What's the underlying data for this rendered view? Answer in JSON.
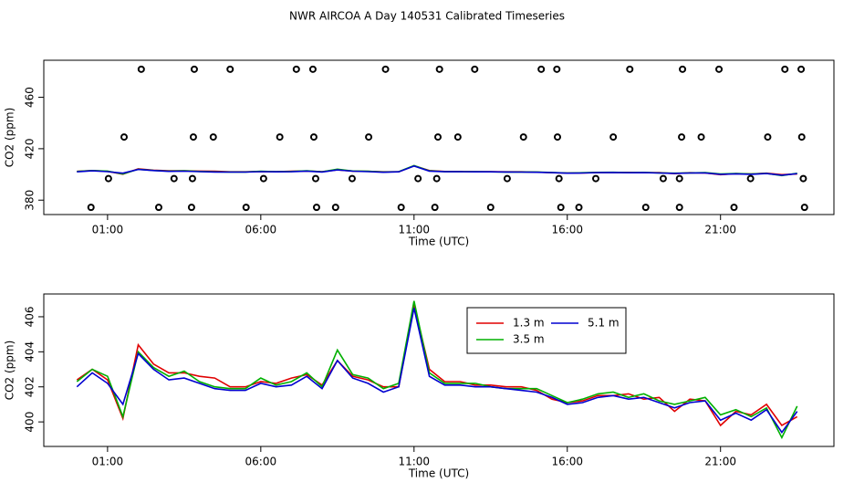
{
  "chart_data": [
    {
      "type": "line",
      "title": "NWR AIRCOA A  Day 140531  Calibrated Timeseries",
      "x_label": "Time (UTC)",
      "y_label": "CO2 (ppm)",
      "xlim": [
        -1.08,
        24.7
      ],
      "ylim": [
        368.8,
        488.8
      ],
      "xticks": [
        {
          "value": 1,
          "label": "01:00"
        },
        {
          "value": 6,
          "label": "06:00"
        },
        {
          "value": 11,
          "label": "11:00"
        },
        {
          "value": 16,
          "label": "16:00"
        },
        {
          "value": 21,
          "label": "21:00"
        }
      ],
      "yticks": [
        380,
        420,
        460
      ],
      "x": [
        0,
        0.5,
        1,
        1.5,
        2,
        2.5,
        3,
        3.5,
        4,
        4.5,
        5,
        5.5,
        6,
        6.5,
        7,
        7.5,
        8,
        8.5,
        9,
        9.5,
        10,
        10.5,
        11,
        11.5,
        12,
        12.5,
        13,
        13.5,
        14,
        14.5,
        15,
        15.5,
        16,
        16.5,
        17,
        17.5,
        18,
        18.5,
        19,
        19.5,
        20,
        20.5,
        21,
        21.5,
        22,
        22.5,
        23,
        23.5
      ],
      "series": [
        {
          "color": "#e00000",
          "values": [
            402.4,
            403.0,
            402.4,
            400.2,
            404.4,
            403.3,
            402.8,
            402.8,
            402.6,
            402.5,
            402.0,
            402.0,
            402.3,
            402.2,
            402.5,
            402.7,
            402.1,
            403.5,
            402.6,
            402.4,
            402.0,
            402.0,
            406.7,
            403.0,
            402.3,
            402.3,
            402.1,
            402.1,
            402.0,
            402.0,
            401.8,
            401.3,
            401.1,
            401.2,
            401.5,
            401.5,
            401.6,
            401.3,
            401.4,
            400.6,
            401.3,
            401.2,
            399.8,
            400.6,
            400.4,
            401.0,
            399.8,
            400.3
          ]
        },
        {
          "color": "#00b000",
          "values": [
            402.3,
            403.0,
            402.6,
            400.3,
            404.0,
            403.1,
            402.6,
            402.9,
            402.3,
            402.0,
            401.9,
            401.9,
            402.5,
            402.1,
            402.3,
            402.8,
            402.0,
            404.1,
            402.7,
            402.5,
            401.9,
            402.2,
            406.9,
            402.8,
            402.2,
            402.2,
            402.2,
            402.0,
            401.9,
            401.9,
            401.9,
            401.5,
            401.1,
            401.3,
            401.6,
            401.7,
            401.4,
            401.6,
            401.2,
            401.0,
            401.2,
            401.4,
            400.4,
            400.7,
            400.3,
            400.8,
            399.1,
            400.9
          ]
        },
        {
          "color": "#0000d0",
          "values": [
            402.0,
            402.8,
            402.2,
            401.0,
            403.9,
            403.0,
            402.4,
            402.5,
            402.2,
            401.9,
            401.8,
            401.8,
            402.2,
            402.0,
            402.1,
            402.6,
            401.9,
            403.5,
            402.5,
            402.2,
            401.7,
            402.0,
            406.5,
            402.6,
            402.1,
            402.1,
            402.0,
            402.0,
            401.9,
            401.8,
            401.7,
            401.4,
            401.0,
            401.1,
            401.4,
            401.5,
            401.3,
            401.4,
            401.1,
            400.8,
            401.1,
            401.2,
            400.1,
            400.5,
            400.1,
            400.7,
            399.4,
            400.6
          ]
        },
        {
          "style": "points",
          "color": "#000000",
          "x": [
            2.1,
            3.83,
            5.0,
            7.16,
            7.7,
            10.07,
            11.83,
            12.98,
            15.15,
            15.66,
            18.04,
            19.76,
            20.95,
            23.1,
            23.63,
            1.54,
            3.8,
            4.45,
            6.62,
            7.73,
            9.52,
            11.78,
            12.43,
            14.57,
            15.68,
            17.5,
            19.73,
            20.37,
            22.54,
            23.65,
            1.03,
            3.17,
            3.77,
            6.09,
            7.79,
            8.98,
            11.13,
            11.74,
            14.04,
            15.73,
            16.93,
            19.13,
            19.66,
            21.98,
            23.7,
            0.46,
            2.67,
            3.74,
            5.52,
            7.82,
            8.44,
            10.58,
            11.68,
            13.5,
            15.79,
            16.38,
            18.56,
            19.66,
            21.44,
            23.74
          ],
          "values": [
            481.8,
            481.8,
            481.8,
            481.8,
            481.8,
            481.8,
            481.8,
            481.8,
            481.8,
            481.8,
            481.8,
            481.8,
            481.8,
            481.8,
            481.8,
            429.1,
            429.1,
            429.1,
            429.1,
            429.1,
            429.1,
            429.1,
            429.1,
            429.1,
            429.1,
            429.1,
            429.1,
            429.1,
            429.1,
            429.1,
            396.8,
            396.8,
            396.8,
            396.8,
            396.8,
            396.8,
            396.8,
            396.8,
            396.8,
            396.8,
            396.8,
            396.8,
            396.8,
            396.8,
            396.8,
            374.4,
            374.4,
            374.4,
            374.4,
            374.4,
            374.4,
            374.4,
            374.4,
            374.4,
            374.4,
            374.4,
            374.4,
            374.4,
            374.4,
            374.4
          ]
        }
      ]
    },
    {
      "type": "line",
      "x_label": "Time (UTC)",
      "y_label": "CO2 (ppm)",
      "xlim": [
        -1.08,
        24.7
      ],
      "ylim": [
        398.6,
        407.3
      ],
      "xticks": [
        {
          "value": 1,
          "label": "01:00"
        },
        {
          "value": 6,
          "label": "06:00"
        },
        {
          "value": 11,
          "label": "11:00"
        },
        {
          "value": 16,
          "label": "16:00"
        },
        {
          "value": 21,
          "label": "21:00"
        }
      ],
      "yticks": [
        400,
        402,
        404,
        406
      ],
      "x": [
        0,
        0.5,
        1,
        1.5,
        2,
        2.5,
        3,
        3.5,
        4,
        4.5,
        5,
        5.5,
        6,
        6.5,
        7,
        7.5,
        8,
        8.5,
        9,
        9.5,
        10,
        10.5,
        11,
        11.5,
        12,
        12.5,
        13,
        13.5,
        14,
        14.5,
        15,
        15.5,
        16,
        16.5,
        17,
        17.5,
        18,
        18.5,
        19,
        19.5,
        20,
        20.5,
        21,
        21.5,
        22,
        22.5,
        23,
        23.5
      ],
      "series": [
        {
          "name": "1.3 m",
          "color": "#e00000",
          "values": [
            402.4,
            403.0,
            402.4,
            400.2,
            404.4,
            403.3,
            402.8,
            402.8,
            402.6,
            402.5,
            402.0,
            402.0,
            402.3,
            402.2,
            402.5,
            402.7,
            402.1,
            403.5,
            402.6,
            402.4,
            402.0,
            402.0,
            406.7,
            403.0,
            402.3,
            402.3,
            402.1,
            402.1,
            402.0,
            402.0,
            401.8,
            401.3,
            401.1,
            401.2,
            401.5,
            401.5,
            401.6,
            401.3,
            401.4,
            400.6,
            401.3,
            401.2,
            399.8,
            400.6,
            400.4,
            401.0,
            399.8,
            400.3
          ]
        },
        {
          "name": "3.5 m",
          "color": "#00b000",
          "values": [
            402.3,
            403.0,
            402.6,
            400.3,
            404.0,
            403.1,
            402.6,
            402.9,
            402.3,
            402.0,
            401.9,
            401.9,
            402.5,
            402.1,
            402.3,
            402.8,
            402.0,
            404.1,
            402.7,
            402.5,
            401.9,
            402.2,
            406.9,
            402.8,
            402.2,
            402.2,
            402.2,
            402.0,
            401.9,
            401.9,
            401.9,
            401.5,
            401.1,
            401.3,
            401.6,
            401.7,
            401.4,
            401.6,
            401.2,
            401.0,
            401.2,
            401.4,
            400.4,
            400.7,
            400.3,
            400.8,
            399.1,
            400.9
          ]
        },
        {
          "name": "5.1 m",
          "color": "#0000d0",
          "values": [
            402.0,
            402.8,
            402.2,
            401.0,
            403.9,
            403.0,
            402.4,
            402.5,
            402.2,
            401.9,
            401.8,
            401.8,
            402.2,
            402.0,
            402.1,
            402.6,
            401.9,
            403.5,
            402.5,
            402.2,
            401.7,
            402.0,
            406.5,
            402.6,
            402.1,
            402.1,
            402.0,
            402.0,
            401.9,
            401.8,
            401.7,
            401.4,
            401.0,
            401.1,
            401.4,
            401.5,
            401.3,
            401.4,
            401.1,
            400.8,
            401.1,
            401.2,
            400.1,
            400.5,
            400.1,
            400.7,
            399.4,
            400.6
          ]
        }
      ]
    }
  ]
}
